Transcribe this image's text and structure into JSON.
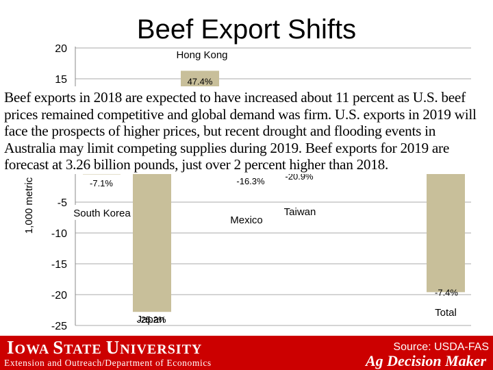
{
  "slide": {
    "title": "Beef Export Shifts",
    "text": "Beef exports in 2018 are expected to have increased about 11 percent as U.S. beef prices remained competitive and global demand was firm.  U.S. exports in 2019 will face the prospects of higher prices, but recent drought and flooding events in Australia may limit competing supplies during 2019.  Beef exports for 2019 are forecast at 3.26 billion pounds, just over 2 percent higher than 2018."
  },
  "chart_data": {
    "type": "bar",
    "ylabel": "1,000 metric",
    "yticks": [
      "20",
      "15",
      "-5",
      "-10",
      "-15",
      "-20",
      "-25"
    ],
    "ylim": [
      -25,
      20
    ],
    "grid": true,
    "bars": [
      {
        "label": "South Korea",
        "value": -0.5,
        "pct_label": "-7.1%",
        "label_side": "below"
      },
      {
        "label": "Japan",
        "value": -22.8,
        "pct_label": "-25.2%",
        "label_side": "below"
      },
      {
        "label": "Hong Kong",
        "value": 16.3,
        "pct_label": "47.4%",
        "label_side": "above"
      },
      {
        "label": "Mexico",
        "value": -0.3,
        "pct_label": "-16.3%",
        "label_side": "below"
      },
      {
        "label": "Taiwan",
        "value": -0.1,
        "pct_label": "-20.9%",
        "label_side": "below"
      },
      {
        "label": "Total",
        "value": -19.6,
        "pct_label": "-7.4%",
        "label_side": "below"
      }
    ],
    "colors": {
      "bar": "#c8bf9a",
      "grid": "#aaaaaa",
      "axis": "#888888"
    }
  },
  "footer": {
    "logo_first": "I",
    "logo_first_rest": "OWA ",
    "logo_second": "S",
    "logo_second_rest": "TATE ",
    "logo_third": "U",
    "logo_third_rest": "NIVERSITY",
    "department": "Extension and Outreach/Department of Economics",
    "source": "Source: USDA-FAS",
    "brand": "Ag Decision Maker"
  }
}
